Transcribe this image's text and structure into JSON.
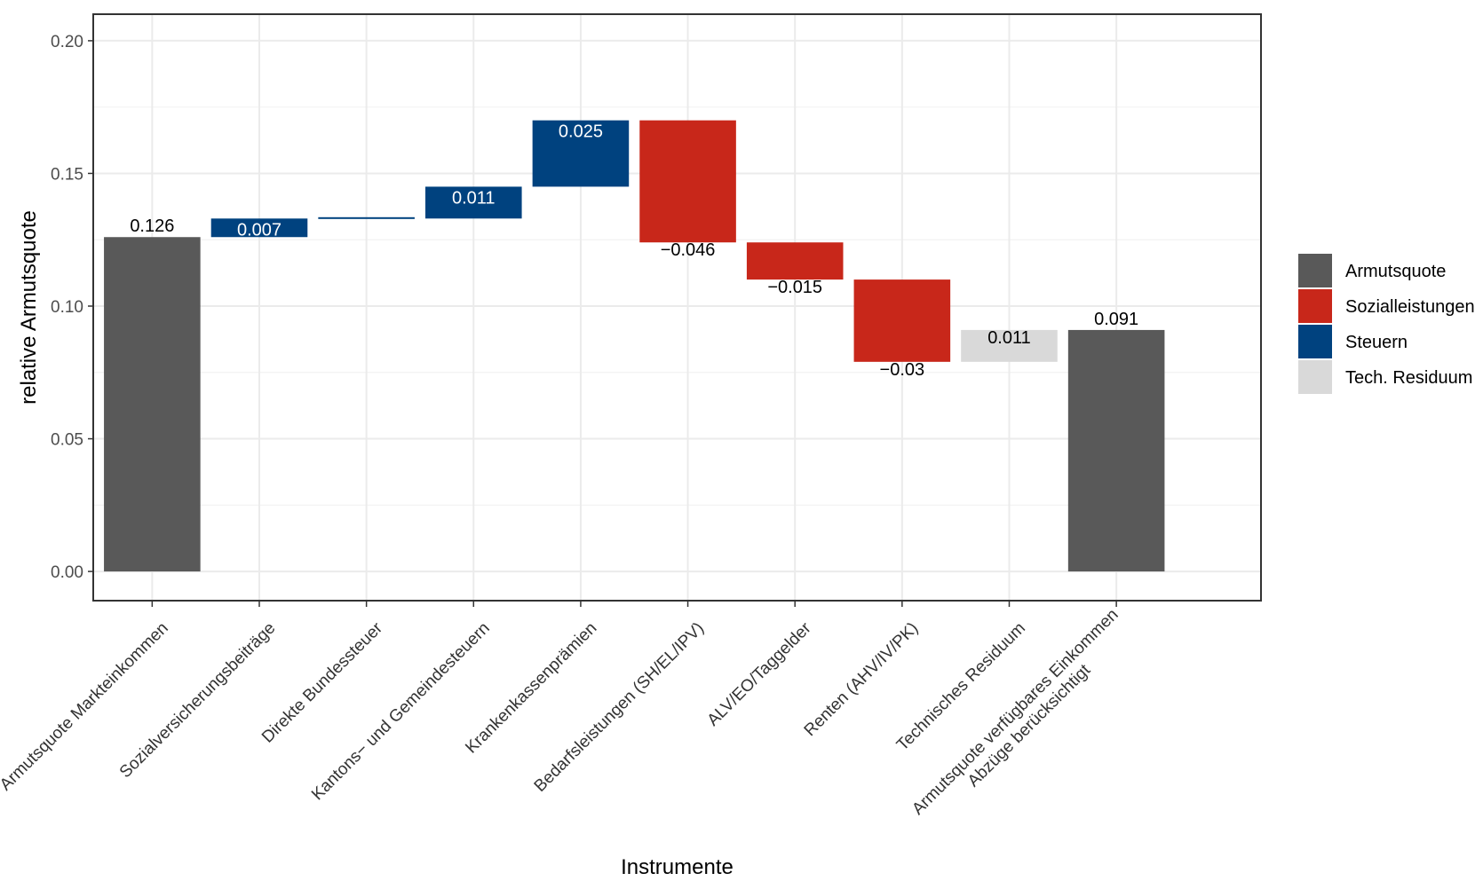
{
  "chart_data": {
    "type": "waterfall",
    "xlabel": "Instrumente",
    "ylabel": "relative Armutsquote",
    "ylim": [
      -0.011,
      0.21
    ],
    "yticks": [
      "0.00",
      "0.05",
      "0.10",
      "0.15",
      "0.20"
    ],
    "ytick_values": [
      0,
      0.05,
      0.1,
      0.15,
      0.2
    ],
    "grid": true,
    "legend_position": "right",
    "categories": [
      "Armutsquote Markteinkommen",
      "Sozialversicherungsbeiträge",
      "Direkte Bundessteuer",
      "Kantons− und Gemeindesteuern",
      "Krankenkassenprämien",
      "Bedarfsleistungen (SH/EL/IPV)",
      "ALV/EO/Taggelder",
      "Renten (AHV/IV/PK)",
      "Technisches Residuum",
      "Armutsquote verfügbares Einkommen\nAbzüge berücksichtigt"
    ],
    "bars": [
      {
        "group": "Armutsquote",
        "start": 0,
        "end": 0.126,
        "label": "0.126"
      },
      {
        "group": "Steuern",
        "start": 0.126,
        "end": 0.133,
        "label": "0.007"
      },
      {
        "group": "Steuern",
        "start": 0.133,
        "end": 0.1335,
        "label": ""
      },
      {
        "group": "Steuern",
        "start": 0.133,
        "end": 0.145,
        "label": "0.011"
      },
      {
        "group": "Steuern",
        "start": 0.145,
        "end": 0.17,
        "label": "0.025"
      },
      {
        "group": "Sozialleistungen",
        "start": 0.17,
        "end": 0.124,
        "label": "−0.046"
      },
      {
        "group": "Sozialleistungen",
        "start": 0.124,
        "end": 0.11,
        "label": "−0.015"
      },
      {
        "group": "Sozialleistungen",
        "start": 0.11,
        "end": 0.079,
        "label": "−0.03"
      },
      {
        "group": "Tech. Residuum",
        "start": 0.079,
        "end": 0.091,
        "label": "0.011"
      },
      {
        "group": "Armutsquote",
        "start": 0,
        "end": 0.091,
        "label": "0.091"
      }
    ],
    "legend": [
      {
        "name": "Armutsquote",
        "color": "#595959"
      },
      {
        "name": "Sozialleistungen",
        "color": "#c8271a"
      },
      {
        "name": "Steuern",
        "color": "#00427f"
      },
      {
        "name": "Tech. Residuum",
        "color": "#d9d9d9"
      }
    ]
  }
}
